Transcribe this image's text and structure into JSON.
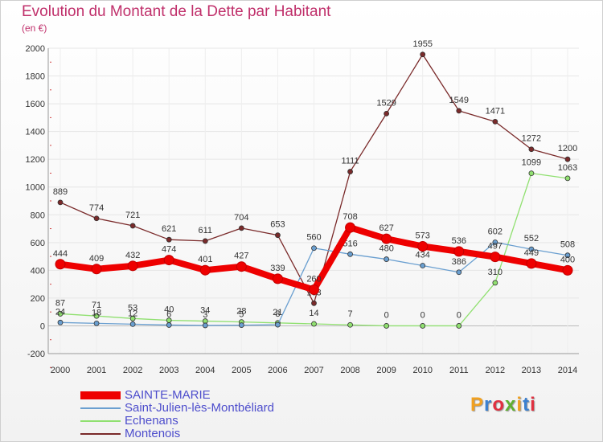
{
  "title": "Evolution du Montant de la Dette par Habitant",
  "unit": "(en €)",
  "logo": {
    "text": "Proxiti",
    "colors": [
      "#f0a020",
      "#3a80d0",
      "#e03040",
      "#60b030",
      "#f0a020",
      "#3a80d0",
      "#e03040"
    ]
  },
  "chart_data": {
    "type": "line",
    "x": [
      "2000",
      "2001",
      "2002",
      "2003",
      "2004",
      "2005",
      "2006",
      "2007",
      "2008",
      "2009",
      "2010",
      "2011",
      "2012",
      "2013",
      "2014"
    ],
    "ylim": [
      -200,
      2000
    ],
    "yticks": [
      "-200",
      "0",
      "200",
      "400",
      "600",
      "800",
      "1000",
      "1200",
      "1400",
      "1600",
      "1800",
      "2000"
    ],
    "legend_position": "bottom-left",
    "series": [
      {
        "name": "Montenois",
        "color": "#7a2a2a",
        "values": [
          889,
          774,
          721,
          621,
          611,
          704,
          653,
          163,
          1111,
          1529,
          1955,
          1549,
          1471,
          1272,
          1200
        ],
        "labels": [
          "889",
          "774",
          "721",
          "621",
          "611",
          "704",
          "653",
          "163",
          "1111",
          "1529",
          "1955",
          "1549",
          "1471",
          "1272",
          "1200"
        ]
      },
      {
        "name": "Echenans",
        "color": "#90e070",
        "values": [
          87,
          71,
          53,
          40,
          34,
          28,
          21,
          14,
          7,
          0,
          0,
          0,
          310,
          1099,
          1063
        ],
        "labels": [
          "87",
          "71",
          "53",
          "40",
          "34",
          "28",
          "21",
          "14",
          "7",
          "0",
          "0",
          "0",
          "310",
          "1099",
          "1063"
        ]
      },
      {
        "name": "Saint-Julien-lès-Montbéliard",
        "color": "#6a9fd0",
        "values": [
          24,
          18,
          12,
          6,
          3,
          5,
          8,
          560,
          516,
          480,
          434,
          386,
          602,
          552,
          508
        ],
        "labels": [
          "24",
          "18",
          "12",
          "6",
          "3",
          "5",
          "8",
          "560",
          "516",
          "480",
          "434",
          "386",
          "602",
          "552",
          "508"
        ]
      },
      {
        "name": "SAINTE-MARIE",
        "color": "#ee0000",
        "values": [
          444,
          409,
          432,
          474,
          401,
          427,
          339,
          260,
          708,
          627,
          573,
          536,
          497,
          449,
          400
        ],
        "labels": [
          "444",
          "409",
          "432",
          "474",
          "401",
          "427",
          "339",
          "260",
          "708",
          "627",
          "573",
          "536",
          "497",
          "449",
          "400"
        ]
      }
    ],
    "legend_order": [
      "SAINTE-MARIE",
      "Saint-Julien-lès-Montbéliard",
      "Echenans",
      "Montenois"
    ]
  }
}
